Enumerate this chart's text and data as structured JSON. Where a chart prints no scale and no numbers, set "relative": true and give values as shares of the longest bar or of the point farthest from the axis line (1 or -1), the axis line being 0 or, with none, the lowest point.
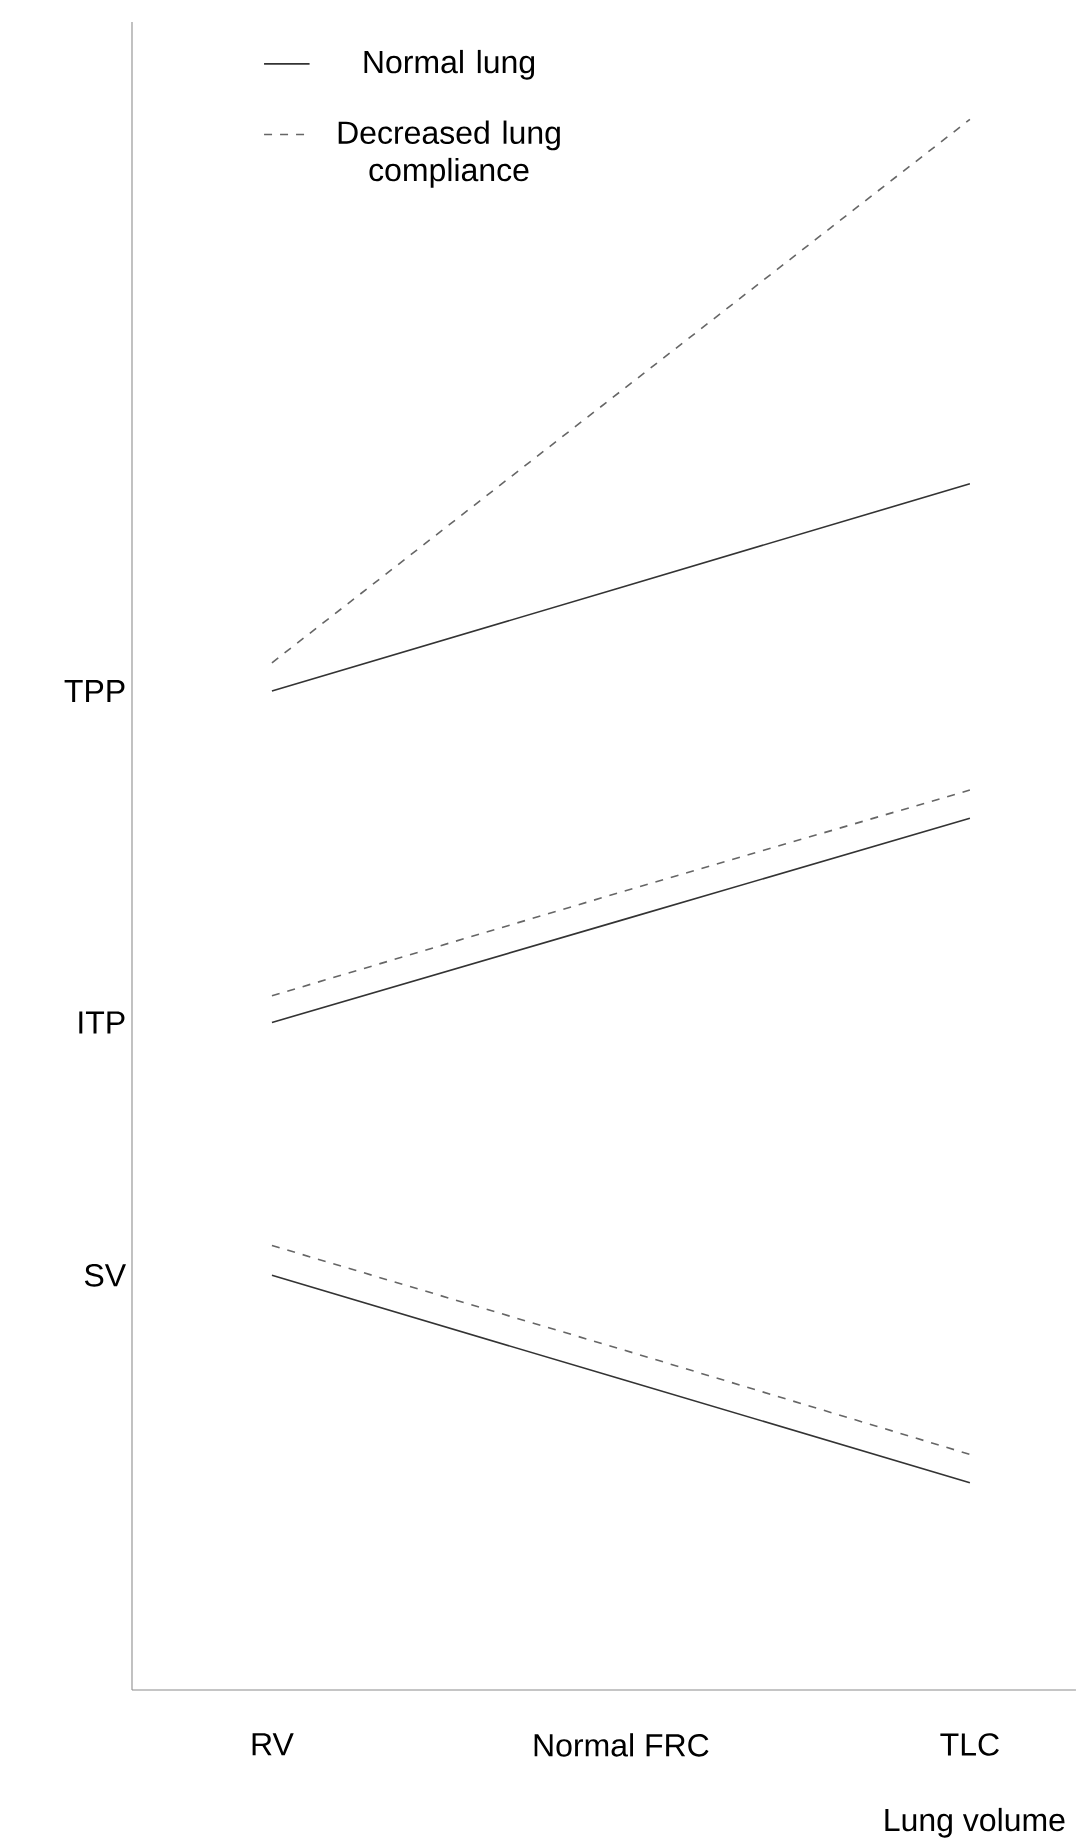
{
  "chart_data": {
    "type": "line",
    "relative": true,
    "xlabel": "Lung volume",
    "categories": [
      "RV",
      "Normal FRC",
      "TLC"
    ],
    "series": [
      {
        "name": "Normal lung",
        "color": "#333333",
        "line_style": "solid",
        "values": [
          0.636,
          0.702,
          0.768
        ]
      },
      {
        "name": "Decreased lung compliance",
        "color": "#666666",
        "line_style": "dashed",
        "values": [
          0.654,
          0.827,
          1
        ]
      },
      {
        "color": "#333333",
        "line_style": "solid",
        "values": [
          0.425,
          0.49,
          0.555
        ]
      },
      {
        "color": "#666666",
        "line_style": "dashed",
        "values": [
          0.442,
          0.508,
          0.573
        ]
      },
      {
        "color": "#333333",
        "line_style": "solid",
        "values": [
          0.264,
          0.198,
          0.132
        ]
      },
      {
        "color": "#666666",
        "line_style": "dashed",
        "values": [
          0.283,
          0.217,
          0.15
        ]
      }
    ],
    "annotations": [
      "TPP",
      "ITP",
      "SV"
    ],
    "legend": "top left",
    "grid": false,
    "marker": "none"
  }
}
